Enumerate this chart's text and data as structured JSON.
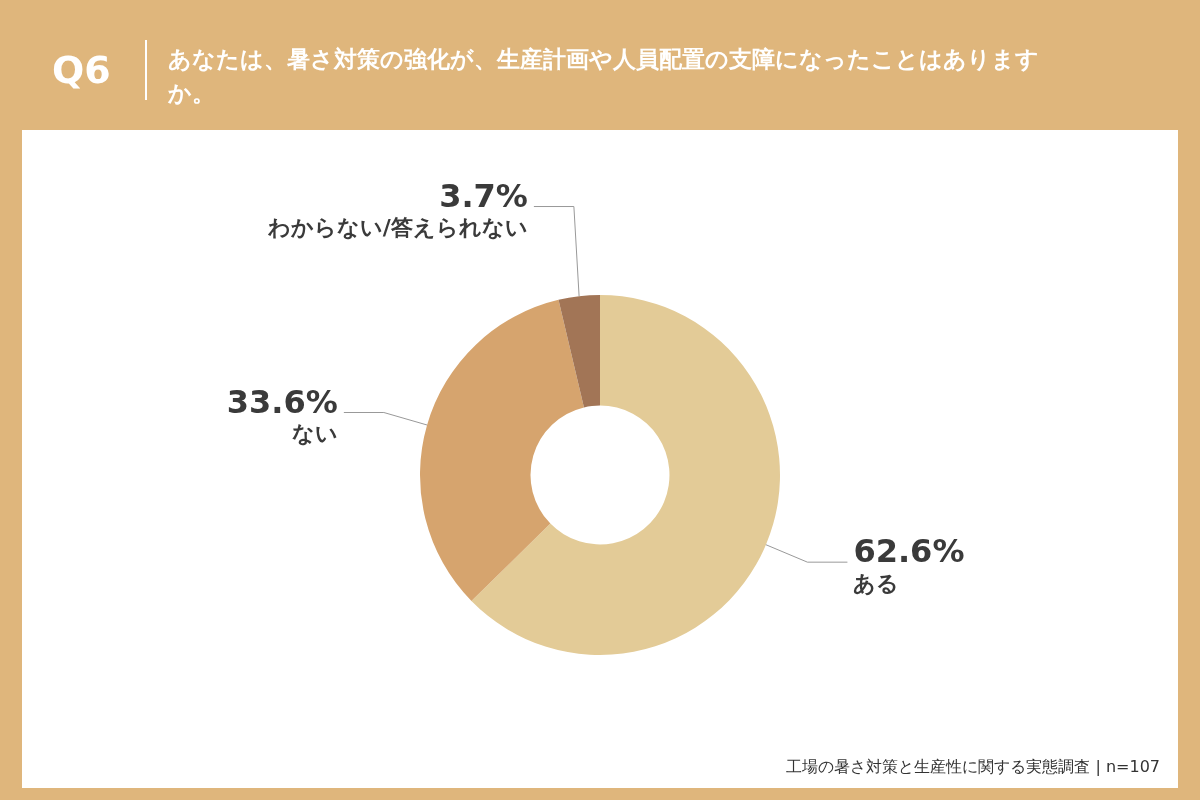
{
  "chart_data": {
    "type": "donut",
    "title": "あなたは、暑さ対策の強化が、生産計画や人員配置の支障になったことはありますか。",
    "annotations": [
      "Q6",
      "工場の暑さ対策と生産性に関する実態調査 | n=107"
    ],
    "categories": [
      "ある",
      "ない",
      "わからない/答えられない"
    ],
    "values": [
      62.6,
      33.6,
      3.7
    ],
    "value_labels": [
      "62.6%",
      "33.6%",
      "3.7%"
    ],
    "colors": [
      "#e3cb97",
      "#d6a46e",
      "#a27556"
    ],
    "legend": false
  }
}
